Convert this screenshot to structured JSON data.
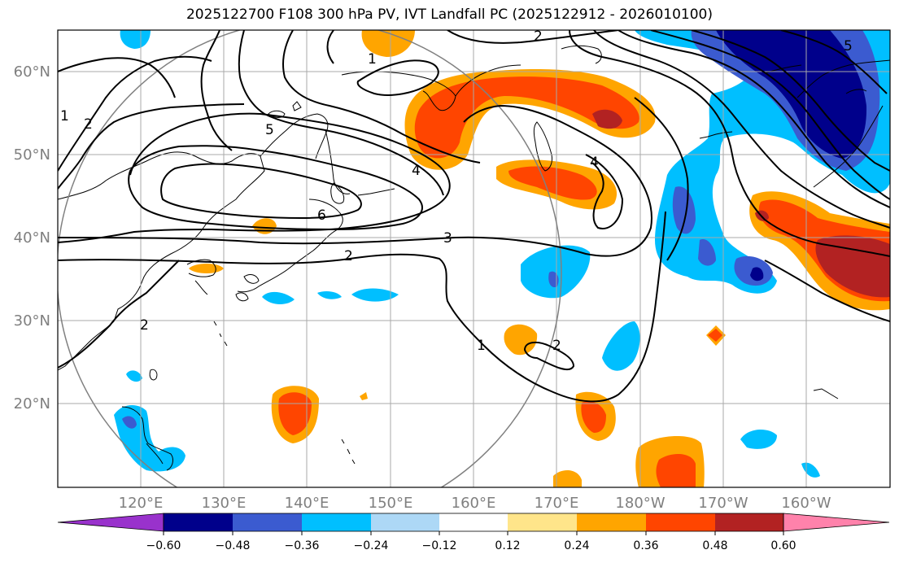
{
  "title": "2025122700 F108 300 hPa PV, IVT Landfall PC (2025122912 - 2026010100)",
  "axes": {
    "lon_ticks": [
      "120°E",
      "130°E",
      "140°E",
      "150°E",
      "160°E",
      "170°E",
      "180°W",
      "170°W",
      "160°W"
    ],
    "lat_ticks": [
      "60°N",
      "50°N",
      "40°N",
      "30°N",
      "20°N"
    ],
    "tick_color": "#7f7f7f"
  },
  "map": {
    "lon_range": [
      110,
      210
    ],
    "lat_range": [
      10,
      65
    ],
    "grid": true,
    "contour_labels": [
      "1",
      "2",
      "2",
      "2",
      "2",
      "1",
      "2",
      "3",
      "4",
      "4",
      "5",
      "5",
      "6",
      "1"
    ]
  },
  "colorbar": {
    "tick_labels": [
      "−0.60",
      "−0.48",
      "−0.36",
      "−0.24",
      "−0.12",
      "0.12",
      "0.24",
      "0.36",
      "0.48",
      "0.60"
    ],
    "colors": [
      "#9932cc",
      "#00008b",
      "#3b5bd0",
      "#00bfff",
      "#add8f6",
      "#ffffff",
      "#ffe58a",
      "#ffa500",
      "#ff4500",
      "#b22222",
      "#ff82ab"
    ],
    "extend": "both"
  }
}
